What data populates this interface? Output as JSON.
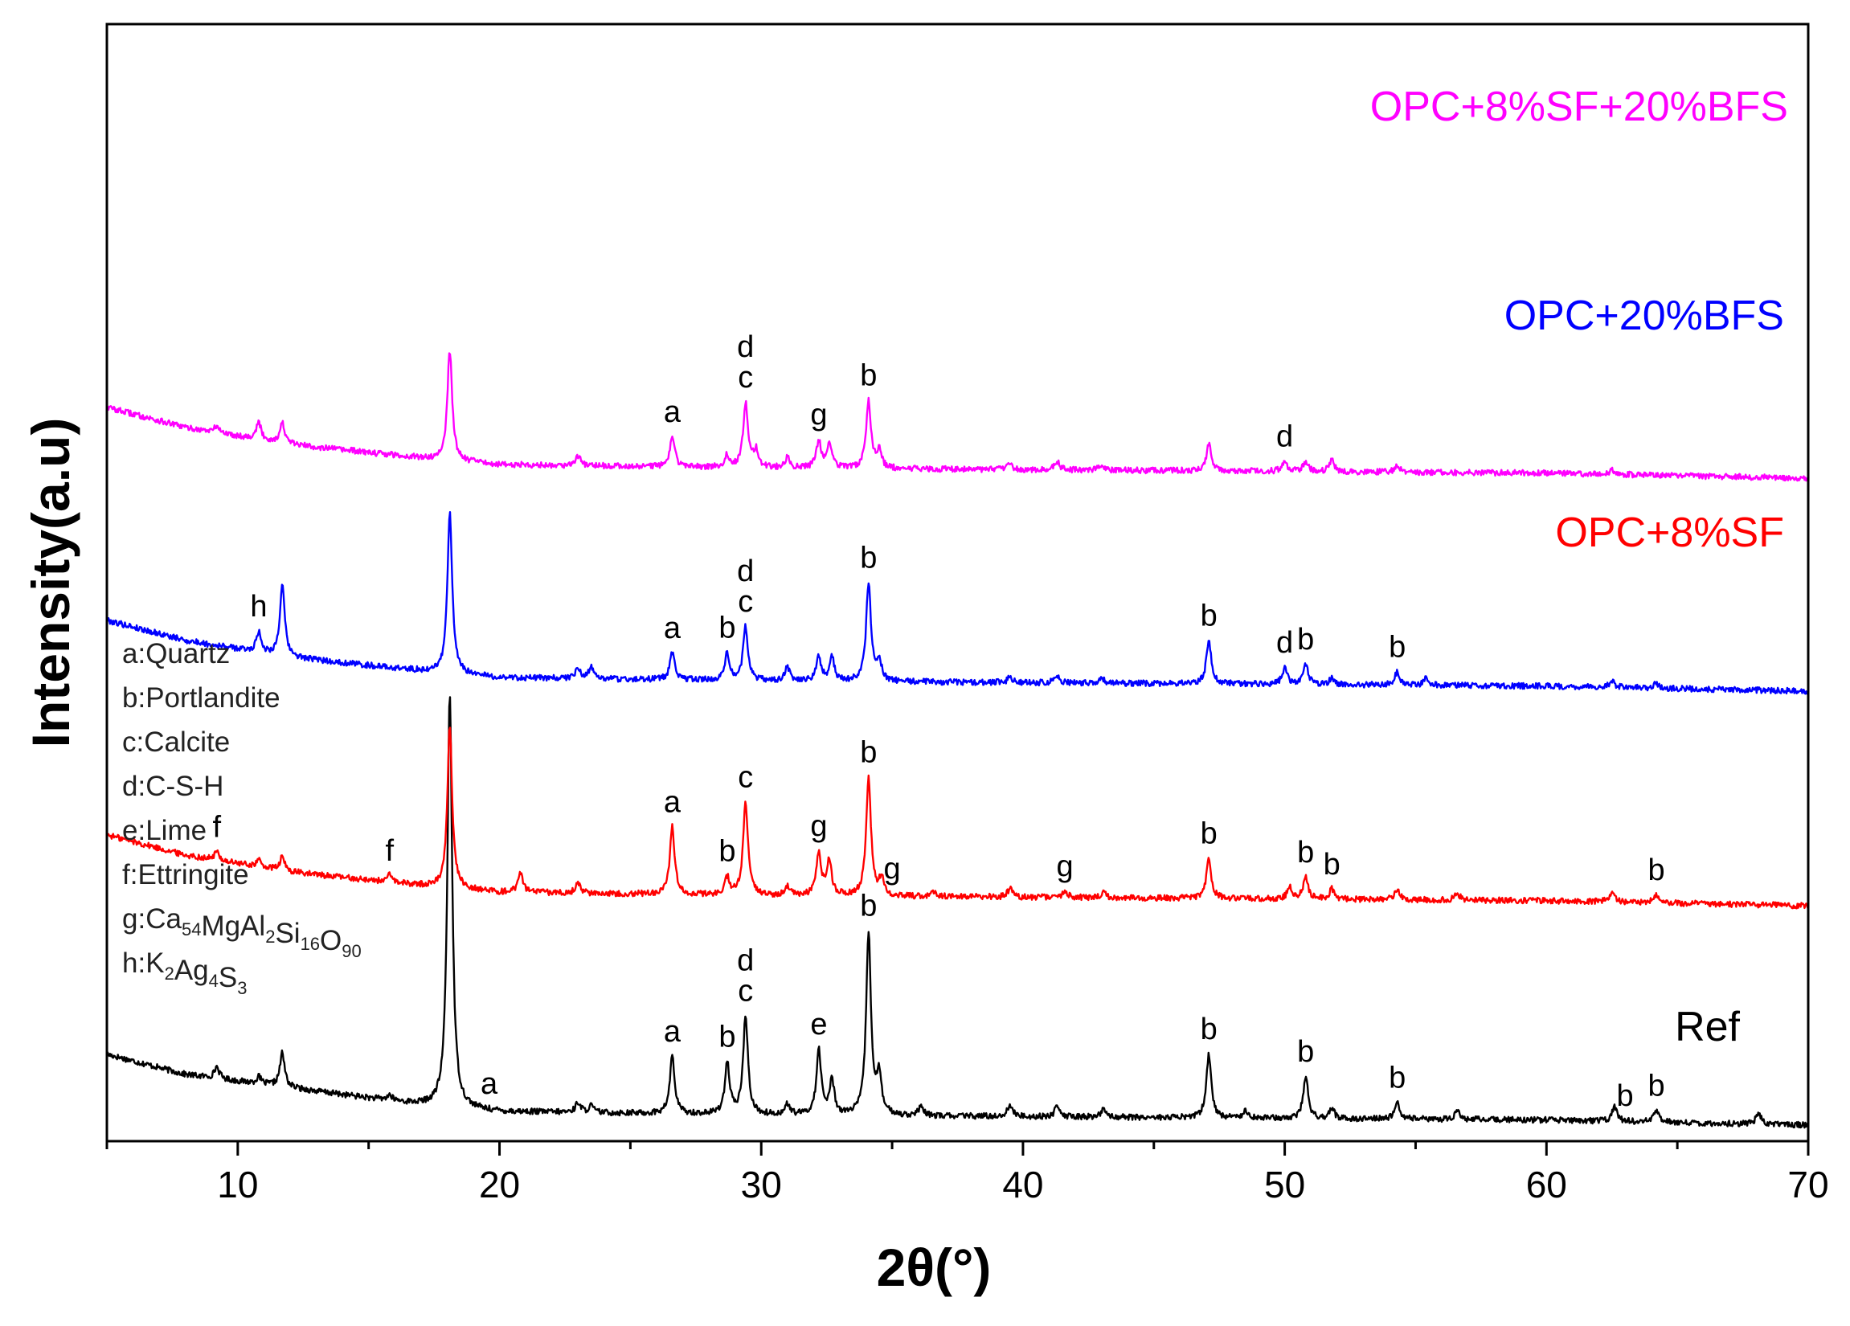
{
  "chart_data": {
    "type": "line",
    "title": "",
    "xlabel": "2θ(°)",
    "ylabel": "Intensity(a.u)",
    "xlim": [
      5,
      70
    ],
    "xticks": [
      10,
      20,
      30,
      40,
      50,
      60,
      70
    ],
    "yticks": [],
    "grid": false,
    "series": [
      {
        "name": "Ref",
        "color": "#000000",
        "baseline": [
          [
            5,
            0.42
          ],
          [
            8,
            0.3
          ],
          [
            12,
            0.22
          ],
          [
            17,
            0.12
          ],
          [
            20,
            0.08
          ],
          [
            30,
            0.06
          ],
          [
            40,
            0.05
          ],
          [
            50,
            0.04
          ],
          [
            60,
            0.03
          ],
          [
            70,
            0.0
          ]
        ],
        "peaks": [
          [
            9.2,
            0.07
          ],
          [
            10.8,
            0.04
          ],
          [
            11.7,
            0.2
          ],
          [
            15.8,
            0.03
          ],
          [
            18.1,
            2.45
          ],
          [
            23.0,
            0.06
          ],
          [
            23.5,
            0.04
          ],
          [
            26.6,
            0.34
          ],
          [
            28.7,
            0.3
          ],
          [
            29.4,
            0.58
          ],
          [
            31.0,
            0.06
          ],
          [
            32.2,
            0.38
          ],
          [
            32.7,
            0.2
          ],
          [
            34.1,
            1.08
          ],
          [
            34.5,
            0.22
          ],
          [
            36.1,
            0.05
          ],
          [
            39.5,
            0.07
          ],
          [
            41.3,
            0.06
          ],
          [
            43.1,
            0.05
          ],
          [
            47.1,
            0.38
          ],
          [
            48.5,
            0.05
          ],
          [
            50.8,
            0.25
          ],
          [
            51.8,
            0.06
          ],
          [
            54.3,
            0.1
          ],
          [
            56.6,
            0.05
          ],
          [
            62.6,
            0.09
          ],
          [
            64.2,
            0.07
          ],
          [
            68.1,
            0.07
          ]
        ],
        "peak_labels": [
          {
            "x": 19.6,
            "text": "a"
          },
          {
            "x": 26.6,
            "text": "a"
          },
          {
            "x": 28.7,
            "text": "b"
          },
          {
            "x": 29.4,
            "text": "c"
          },
          {
            "x": 29.4,
            "text": "d"
          },
          {
            "x": 32.2,
            "text": "e"
          },
          {
            "x": 34.1,
            "text": "b"
          },
          {
            "x": 47.1,
            "text": "b"
          },
          {
            "x": 50.8,
            "text": "b"
          },
          {
            "x": 54.3,
            "text": "b"
          },
          {
            "x": 63.0,
            "text": "b"
          },
          {
            "x": 64.2,
            "text": "b"
          }
        ]
      },
      {
        "name": "OPC+8%SF",
        "color": "#ff0000",
        "baseline": [
          [
            5,
            0.42
          ],
          [
            8,
            0.3
          ],
          [
            12,
            0.2
          ],
          [
            17,
            0.12
          ],
          [
            20,
            0.08
          ],
          [
            30,
            0.06
          ],
          [
            40,
            0.05
          ],
          [
            50,
            0.04
          ],
          [
            60,
            0.03
          ],
          [
            70,
            0.0
          ]
        ],
        "peaks": [
          [
            9.2,
            0.05
          ],
          [
            10.8,
            0.04
          ],
          [
            11.7,
            0.08
          ],
          [
            15.8,
            0.04
          ],
          [
            18.1,
            0.95
          ],
          [
            20.8,
            0.12
          ],
          [
            23.0,
            0.06
          ],
          [
            26.6,
            0.4
          ],
          [
            28.7,
            0.1
          ],
          [
            29.4,
            0.55
          ],
          [
            31.0,
            0.05
          ],
          [
            32.2,
            0.25
          ],
          [
            32.6,
            0.2
          ],
          [
            34.1,
            0.7
          ],
          [
            34.6,
            0.1
          ],
          [
            36.6,
            0.03
          ],
          [
            39.5,
            0.05
          ],
          [
            41.6,
            0.04
          ],
          [
            43.1,
            0.03
          ],
          [
            47.1,
            0.24
          ],
          [
            50.2,
            0.07
          ],
          [
            50.8,
            0.13
          ],
          [
            51.8,
            0.06
          ],
          [
            54.3,
            0.06
          ],
          [
            56.6,
            0.04
          ],
          [
            62.5,
            0.06
          ],
          [
            64.2,
            0.05
          ]
        ],
        "peak_labels": [
          {
            "x": 9.2,
            "text": "f"
          },
          {
            "x": 15.8,
            "text": "f"
          },
          {
            "x": 26.6,
            "text": "a"
          },
          {
            "x": 28.7,
            "text": "b"
          },
          {
            "x": 29.4,
            "text": "c"
          },
          {
            "x": 32.2,
            "text": "g"
          },
          {
            "x": 34.1,
            "text": "b"
          },
          {
            "x": 35.0,
            "text": "g"
          },
          {
            "x": 41.6,
            "text": "g"
          },
          {
            "x": 47.1,
            "text": "b"
          },
          {
            "x": 50.8,
            "text": "b"
          },
          {
            "x": 51.8,
            "text": "b"
          },
          {
            "x": 64.2,
            "text": "b"
          }
        ]
      },
      {
        "name": "OPC+20%BFS",
        "color": "#0000ff",
        "baseline": [
          [
            5,
            0.42
          ],
          [
            8,
            0.3
          ],
          [
            12,
            0.2
          ],
          [
            17,
            0.12
          ],
          [
            20,
            0.08
          ],
          [
            30,
            0.06
          ],
          [
            40,
            0.05
          ],
          [
            50,
            0.04
          ],
          [
            60,
            0.03
          ],
          [
            70,
            0.0
          ]
        ],
        "peaks": [
          [
            10.8,
            0.12
          ],
          [
            11.7,
            0.42
          ],
          [
            18.1,
            0.95
          ],
          [
            23.0,
            0.06
          ],
          [
            23.5,
            0.07
          ],
          [
            26.6,
            0.16
          ],
          [
            28.7,
            0.16
          ],
          [
            29.4,
            0.32
          ],
          [
            31.0,
            0.08
          ],
          [
            32.2,
            0.14
          ],
          [
            32.7,
            0.14
          ],
          [
            34.1,
            0.58
          ],
          [
            34.5,
            0.12
          ],
          [
            39.5,
            0.03
          ],
          [
            41.3,
            0.04
          ],
          [
            43.0,
            0.03
          ],
          [
            47.1,
            0.26
          ],
          [
            50.0,
            0.1
          ],
          [
            50.8,
            0.12
          ],
          [
            51.8,
            0.04
          ],
          [
            54.3,
            0.08
          ],
          [
            55.4,
            0.04
          ],
          [
            62.5,
            0.04
          ],
          [
            64.2,
            0.03
          ]
        ],
        "peak_labels": [
          {
            "x": 10.8,
            "text": "h"
          },
          {
            "x": 26.6,
            "text": "a"
          },
          {
            "x": 28.7,
            "text": "b"
          },
          {
            "x": 29.4,
            "text": "c"
          },
          {
            "x": 29.4,
            "text": "d"
          },
          {
            "x": 34.1,
            "text": "b"
          },
          {
            "x": 47.1,
            "text": "b"
          },
          {
            "x": 50.0,
            "text": "d"
          },
          {
            "x": 50.8,
            "text": "b"
          },
          {
            "x": 54.3,
            "text": "b"
          }
        ]
      },
      {
        "name": "OPC+8%SF+20%BFS",
        "color": "#ff00ff",
        "baseline": [
          [
            5,
            0.42
          ],
          [
            8,
            0.3
          ],
          [
            12,
            0.2
          ],
          [
            17,
            0.12
          ],
          [
            20,
            0.08
          ],
          [
            30,
            0.06
          ],
          [
            40,
            0.05
          ],
          [
            50,
            0.04
          ],
          [
            60,
            0.03
          ],
          [
            70,
            0.0
          ]
        ],
        "peaks": [
          [
            9.2,
            0.04
          ],
          [
            10.8,
            0.1
          ],
          [
            11.7,
            0.12
          ],
          [
            18.1,
            0.65
          ],
          [
            23.0,
            0.06
          ],
          [
            26.6,
            0.18
          ],
          [
            28.7,
            0.07
          ],
          [
            29.4,
            0.38
          ],
          [
            29.8,
            0.1
          ],
          [
            31.0,
            0.06
          ],
          [
            32.2,
            0.16
          ],
          [
            32.6,
            0.14
          ],
          [
            34.1,
            0.4
          ],
          [
            34.5,
            0.1
          ],
          [
            39.5,
            0.03
          ],
          [
            41.3,
            0.05
          ],
          [
            43.0,
            0.03
          ],
          [
            47.1,
            0.16
          ],
          [
            50.0,
            0.06
          ],
          [
            50.8,
            0.06
          ],
          [
            51.8,
            0.07
          ],
          [
            54.3,
            0.04
          ],
          [
            62.5,
            0.03
          ]
        ],
        "peak_labels": [
          {
            "x": 26.6,
            "text": "a"
          },
          {
            "x": 29.4,
            "text": "c"
          },
          {
            "x": 29.4,
            "text": "d"
          },
          {
            "x": 32.2,
            "text": "g"
          },
          {
            "x": 34.1,
            "text": "b"
          },
          {
            "x": 50.0,
            "text": "d"
          }
        ]
      }
    ],
    "legend_position": "left-middle",
    "legend": [
      {
        "key": "a",
        "label": "Quartz"
      },
      {
        "key": "b",
        "label": "Portlandite"
      },
      {
        "key": "c",
        "label": "Calcite"
      },
      {
        "key": "d",
        "label": "C-S-H"
      },
      {
        "key": "e",
        "label": "Lime"
      },
      {
        "key": "f",
        "label": "Ettringite"
      },
      {
        "key": "g",
        "label": "Ca54MgAl2Si16O90"
      },
      {
        "key": "h",
        "label": "K2Ag4S3"
      }
    ]
  }
}
